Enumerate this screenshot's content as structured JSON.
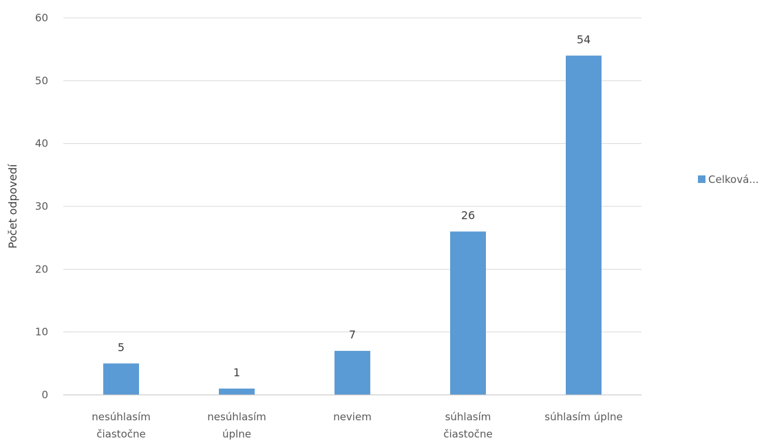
{
  "chart_data": {
    "type": "bar",
    "categories": [
      [
        "nesúhlasím",
        "čiastočne"
      ],
      [
        "nesúhlasím",
        "úplne"
      ],
      [
        "neviem"
      ],
      [
        "súhlasím",
        "čiastočne"
      ],
      [
        "súhlasím úplne"
      ]
    ],
    "series": [
      {
        "name": "Celková...",
        "values": [
          5,
          1,
          7,
          26,
          54
        ],
        "color": "#5b9bd5"
      }
    ],
    "data_labels": [
      "5",
      "1",
      "7",
      "26",
      "54"
    ],
    "y_ticks": [
      "0",
      "10",
      "20",
      "30",
      "40",
      "50",
      "60"
    ],
    "ylim": [
      0,
      60
    ],
    "ylabel": "Počet odpovedí",
    "xlabel": "",
    "title": "",
    "grid": true,
    "legend_position": "right"
  }
}
